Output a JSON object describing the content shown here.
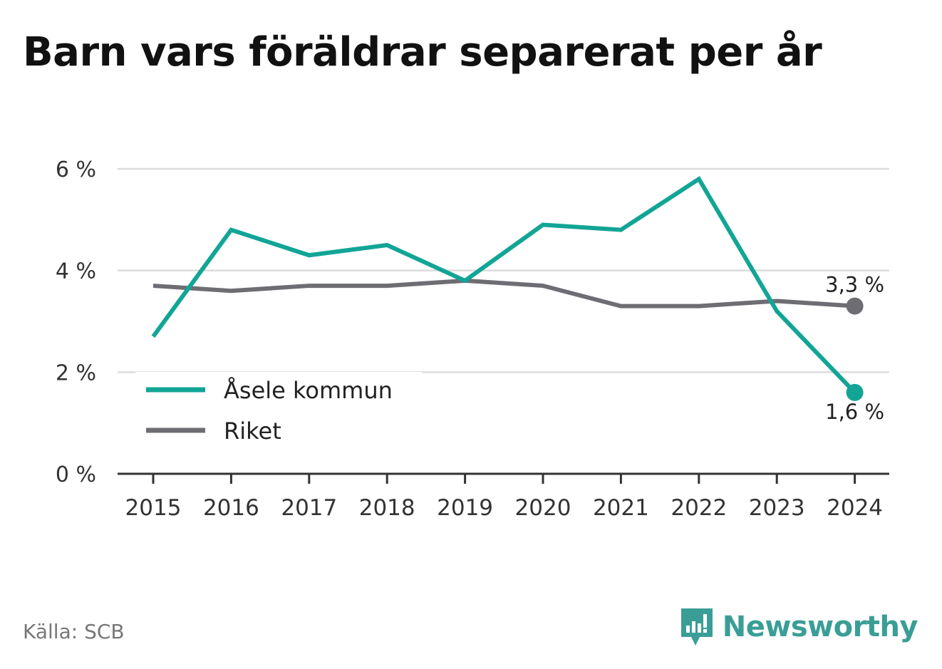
{
  "title": "Barn vars föräldrar separerat per år",
  "source": "Källa: SCB",
  "brand": {
    "name": "Newsworthy",
    "icon": "newsworthy-logo-icon",
    "color": "#3a9e96"
  },
  "chart_data": {
    "type": "line",
    "title": "Barn vars föräldrar separerat per år",
    "x": [
      "2015",
      "2016",
      "2017",
      "2018",
      "2019",
      "2020",
      "2021",
      "2022",
      "2023",
      "2024"
    ],
    "ylim": [
      0,
      6
    ],
    "yticks": [
      0,
      2,
      4,
      6
    ],
    "ytick_labels": [
      "0 %",
      "2 %",
      "4 %",
      "6 %"
    ],
    "grid": true,
    "legend_position": "bottom-left",
    "series": [
      {
        "name": "Åsele kommun",
        "color": "#12a596",
        "values": [
          2.7,
          4.8,
          4.3,
          4.5,
          3.8,
          4.9,
          4.8,
          5.8,
          3.2,
          1.6
        ],
        "end_label": "1,6 %"
      },
      {
        "name": "Riket",
        "color": "#6e6d73",
        "values": [
          3.7,
          3.6,
          3.7,
          3.7,
          3.8,
          3.7,
          3.3,
          3.3,
          3.4,
          3.3
        ],
        "end_label": "3,3 %"
      }
    ]
  }
}
